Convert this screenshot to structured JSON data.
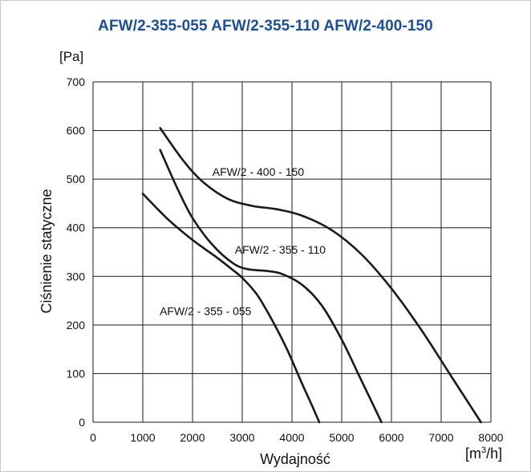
{
  "chart_data": {
    "type": "line",
    "title": "AFW/2-355-055 AFW/2-355-110 AFW/2-400-150",
    "xlabel": "Wydajność",
    "ylabel": "Ciśnienie statyczne",
    "x_unit_prefix": "[m",
    "x_unit_exp": "3",
    "x_unit_suffix": "/h]",
    "y_unit": "[Pa]",
    "xlim": [
      0,
      8000
    ],
    "ylim": [
      0,
      700
    ],
    "x_ticks": [
      "0",
      "1000",
      "2000",
      "3000",
      "4000",
      "5000",
      "6000",
      "7000",
      "8000"
    ],
    "y_ticks": [
      "0",
      "100",
      "200",
      "300",
      "400",
      "500",
      "600",
      "700"
    ],
    "grid": true,
    "series": [
      {
        "name": "AFW/2 - 355 - 055",
        "x": [
          1000,
          1500,
          2000,
          2500,
          2800,
          3000,
          3300,
          3600,
          3900,
          4200,
          4400,
          4550
        ],
        "y": [
          470,
          418,
          375,
          338,
          314,
          297,
          262,
          210,
          150,
          80,
          35,
          0
        ]
      },
      {
        "name": "AFW/2 - 355 - 110",
        "x": [
          1350,
          1700,
          2000,
          2400,
          2800,
          3100,
          3500,
          3800,
          4200,
          4600,
          5000,
          5400,
          5800
        ],
        "y": [
          560,
          480,
          420,
          365,
          328,
          315,
          311,
          305,
          283,
          240,
          170,
          85,
          0
        ]
      },
      {
        "name": "AFW/2 - 400 - 150",
        "x": [
          1350,
          1800,
          2200,
          2700,
          3200,
          3700,
          4200,
          4800,
          5400,
          6000,
          6600,
          7200,
          7800
        ],
        "y": [
          605,
          540,
          495,
          460,
          445,
          438,
          425,
          395,
          345,
          275,
          190,
          95,
          0
        ]
      }
    ]
  }
}
